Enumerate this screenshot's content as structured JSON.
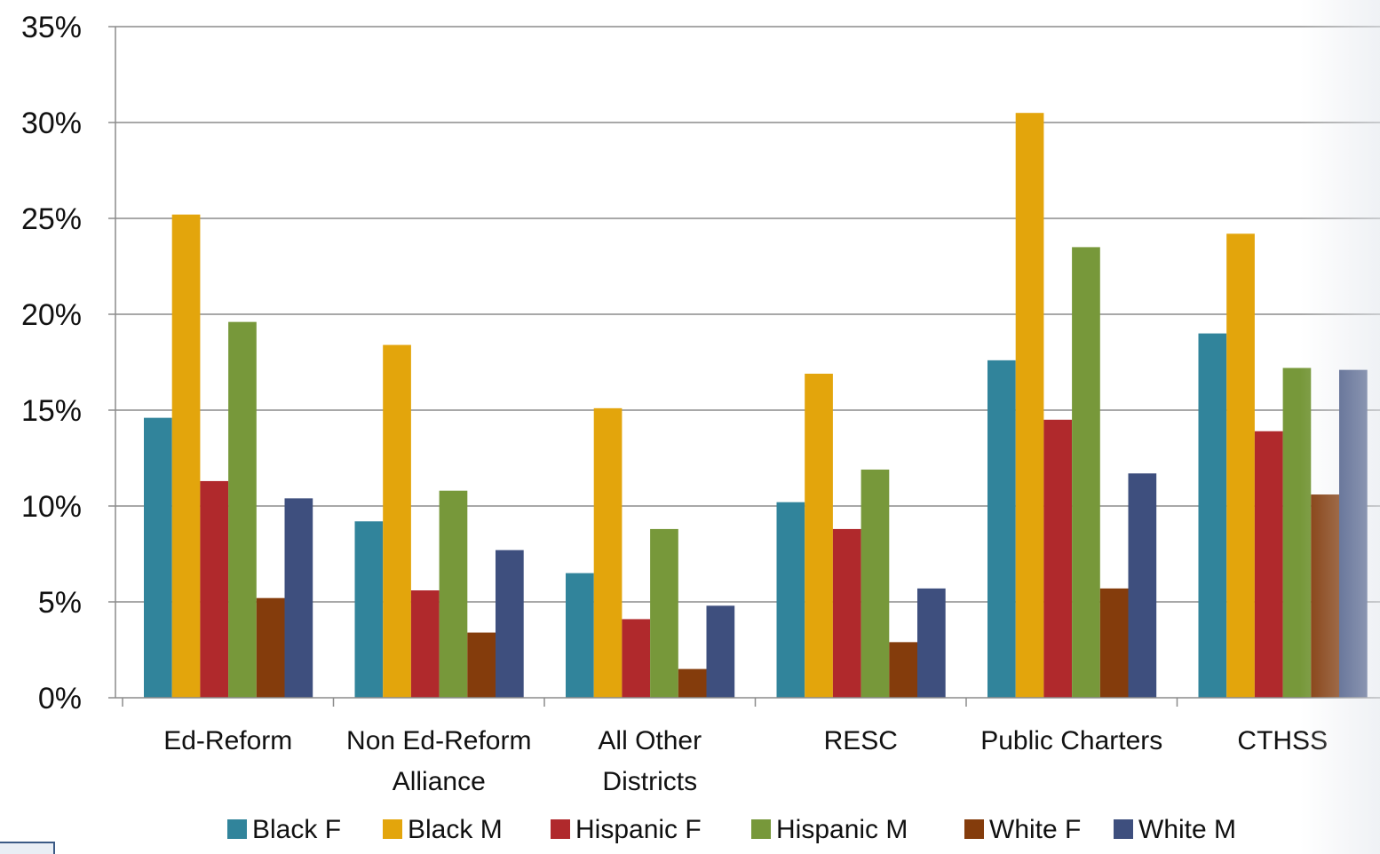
{
  "chart_data": {
    "type": "bar",
    "categories": [
      [
        "Ed-Reform"
      ],
      [
        "Non Ed-Reform",
        "Alliance"
      ],
      [
        "All Other",
        "Districts"
      ],
      [
        "RESC"
      ],
      [
        "Public Charters"
      ],
      [
        "CTHSS"
      ]
    ],
    "series": [
      {
        "name": "Black F",
        "color": "#31849B",
        "values": [
          14.6,
          9.2,
          6.5,
          10.2,
          17.6,
          19.0
        ]
      },
      {
        "name": "Black M",
        "color": "#E3A50C",
        "values": [
          25.2,
          18.4,
          15.1,
          16.9,
          30.5,
          24.2
        ]
      },
      {
        "name": "Hispanic F",
        "color": "#B0292C",
        "values": [
          11.3,
          5.6,
          4.1,
          8.8,
          14.5,
          13.9
        ]
      },
      {
        "name": "Hispanic M",
        "color": "#77983A",
        "values": [
          19.6,
          10.8,
          8.8,
          11.9,
          23.5,
          17.2
        ]
      },
      {
        "name": "White F",
        "color": "#843C0C",
        "values": [
          5.2,
          3.4,
          1.5,
          2.9,
          5.7,
          10.6
        ]
      },
      {
        "name": "White M",
        "color": "#3E4F7E",
        "values": [
          10.4,
          7.7,
          4.8,
          5.7,
          11.7,
          17.1
        ]
      }
    ],
    "y_ticks": [
      "0%",
      "5%",
      "10%",
      "15%",
      "20%",
      "25%",
      "30%",
      "35%"
    ],
    "ylim": [
      0,
      35
    ],
    "grid": true,
    "legend_position": "bottom"
  }
}
